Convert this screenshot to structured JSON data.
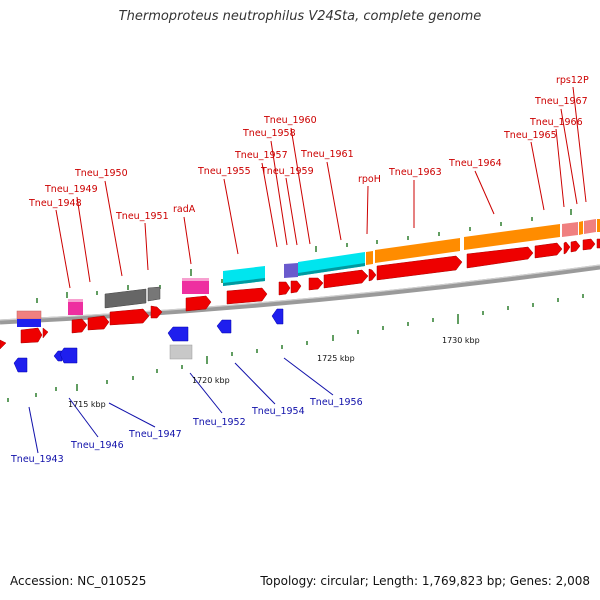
{
  "title": "Thermoproteus neutrophilus V24Sta, complete genome",
  "accession": "Accession: NC_010525",
  "topology": "Topology: circular; Length: 1,769,823 bp; Genes: 2,008",
  "colors": {
    "backbone": "#8c8c8c",
    "tick": "#2e7d2e",
    "cds": "#ee0000",
    "top_label": "#cc0000",
    "bottom_label": "#1111aa",
    "blue": "#1f1fee",
    "orange": "#ff8c00",
    "cyan": "#00e5ee",
    "magenta": "#ee2fa0",
    "gray": "#666666",
    "lightgray": "#c8c8c8",
    "purple": "#6a5acd",
    "pink": "#f08080"
  },
  "kbp_labels": [
    {
      "text": "1715 kbp"
    },
    {
      "text": "1720 kbp"
    },
    {
      "text": "1725 kbp"
    },
    {
      "text": "1730 kbp"
    }
  ],
  "top_labels": [
    {
      "text": "Tneu_1948"
    },
    {
      "text": "Tneu_1949"
    },
    {
      "text": "Tneu_1950"
    },
    {
      "text": "Tneu_1951"
    },
    {
      "text": "radA"
    },
    {
      "text": "Tneu_1955"
    },
    {
      "text": "Tneu_1957"
    },
    {
      "text": "Tneu_1958"
    },
    {
      "text": "Tneu_1959"
    },
    {
      "text": "Tneu_1960"
    },
    {
      "text": "Tneu_1961"
    },
    {
      "text": "rpoH"
    },
    {
      "text": "Tneu_1963"
    },
    {
      "text": "Tneu_1964"
    },
    {
      "text": "Tneu_1965"
    },
    {
      "text": "Tneu_1966"
    },
    {
      "text": "Tneu_1967"
    },
    {
      "text": "rps12P"
    }
  ],
  "bottom_labels": [
    {
      "text": "Tneu_1943"
    },
    {
      "text": "Tneu_1946"
    },
    {
      "text": "Tneu_1947"
    },
    {
      "text": "Tneu_1952"
    },
    {
      "text": "Tneu_1954"
    },
    {
      "text": "Tneu_1956"
    }
  ]
}
